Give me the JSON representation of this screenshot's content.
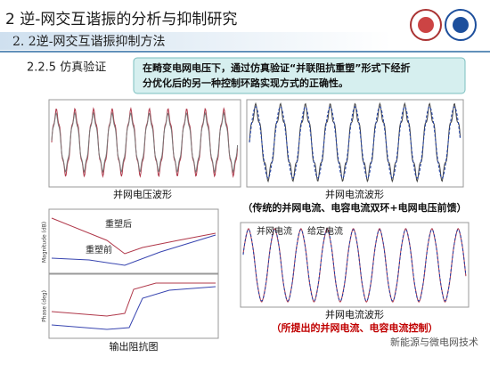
{
  "header": {
    "title": "2 逆-网交互谐振的分析与抑制研究",
    "subtitle": "2. 2逆-网交互谐振抑制方法"
  },
  "section": "2.2.5 仿真验证",
  "note": {
    "lines": [
      "在畸变电网电压下，通过仿真验证“并联阻抗重塑”形式下经折",
      "分优化后的另一种控制环路实现方式的正确性。"
    ]
  },
  "figures": [
    {
      "caption": "并网电压波形"
    },
    {
      "caption": "并网电流波形",
      "subcaption": "（传统的并网电流、电容电流双环+电网电压前馈）"
    },
    {
      "caption": "输出阻抗图",
      "annotations": [
        "重塑后",
        "重塑前"
      ],
      "ylabels": [
        "Magnitude (dB)",
        "Phase (deg)"
      ]
    },
    {
      "caption": "并网电流波形",
      "subcaption": "（所提出的并网电流、电容电流控制）",
      "annotations": [
        "并网电流",
        "给定电流"
      ]
    }
  ],
  "watermark": "新能源与微电网技术"
}
